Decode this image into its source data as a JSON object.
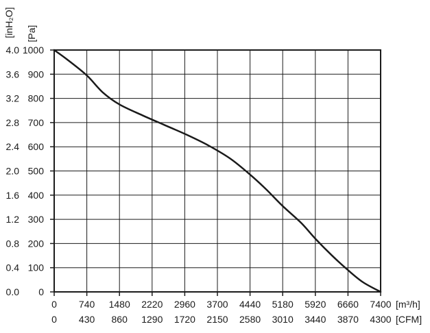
{
  "chart_data": {
    "type": "line",
    "title": "",
    "xlabel_primary": "[m³/h]",
    "xlabel_secondary": "[CFM]",
    "ylabel_primary": "[Pa]",
    "ylabel_secondary": "[inH₂O]",
    "xlim": [
      0,
      7400
    ],
    "ylim": [
      0,
      1000
    ],
    "grid": true,
    "x_ticks_primary": [
      "0",
      "740",
      "1480",
      "2220",
      "2960",
      "3700",
      "4440",
      "5180",
      "5920",
      "6660",
      "7400"
    ],
    "x_ticks_secondary": [
      "0",
      "430",
      "860",
      "1290",
      "1720",
      "2150",
      "2580",
      "3010",
      "3440",
      "3870",
      "4300"
    ],
    "y_ticks_primary": [
      "0",
      "100",
      "200",
      "300",
      "400",
      "500",
      "600",
      "700",
      "800",
      "900",
      "1000"
    ],
    "y_ticks_secondary": [
      "0.0",
      "0.4",
      "0.8",
      "1.2",
      "1.6",
      "2.0",
      "2.4",
      "2.8",
      "3.2",
      "3.6",
      "4.0"
    ],
    "series": [
      {
        "color": "#1a1a1a",
        "x": [
          0,
          300,
          740,
          1100,
          1480,
          2000,
          2500,
          3000,
          3500,
          4000,
          4440,
          4800,
          5180,
          5600,
          5920,
          6300,
          6660,
          7000,
          7400
        ],
        "y": [
          1000,
          960,
          895,
          825,
          775,
          730,
          690,
          650,
          605,
          550,
          485,
          425,
          355,
          285,
          220,
          150,
          90,
          40,
          0
        ]
      }
    ]
  }
}
